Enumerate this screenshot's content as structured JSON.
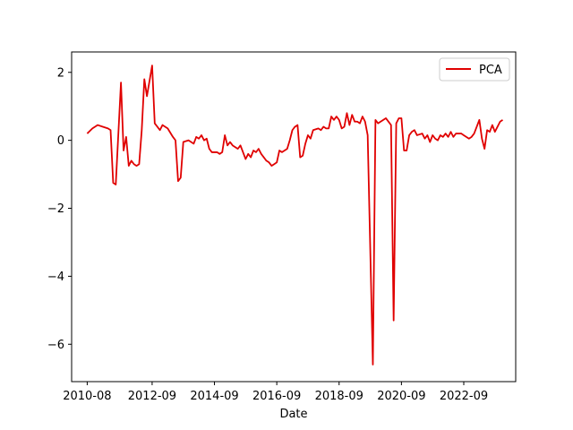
{
  "chart_data": {
    "type": "line",
    "title": "",
    "xlabel": "Date",
    "ylabel": "",
    "x_range": [
      "2010-02",
      "2024-05"
    ],
    "ylim": [
      -7.1,
      2.6
    ],
    "x_ticks": [
      {
        "date": "2010-08",
        "label": "2010-08"
      },
      {
        "date": "2012-09",
        "label": "2012-09"
      },
      {
        "date": "2014-09",
        "label": "2014-09"
      },
      {
        "date": "2016-09",
        "label": "2016-09"
      },
      {
        "date": "2018-09",
        "label": "2018-09"
      },
      {
        "date": "2020-09",
        "label": "2020-09"
      },
      {
        "date": "2022-09",
        "label": "2022-09"
      }
    ],
    "y_ticks": [
      {
        "value": 2,
        "label": "2"
      },
      {
        "value": 0,
        "label": "0"
      },
      {
        "value": -2,
        "label": "−2"
      },
      {
        "value": -4,
        "label": "−4"
      },
      {
        "value": -6,
        "label": "−6"
      }
    ],
    "grid": false,
    "legend_position": "top-right",
    "series": [
      {
        "name": "PCA",
        "color": "#e00000",
        "points": [
          [
            "2010-08",
            0.2
          ],
          [
            "2010-10",
            0.35
          ],
          [
            "2010-12",
            0.45
          ],
          [
            "2011-02",
            0.4
          ],
          [
            "2011-04",
            0.35
          ],
          [
            "2011-05",
            0.3
          ],
          [
            "2011-06",
            -1.25
          ],
          [
            "2011-07",
            -1.3
          ],
          [
            "2011-09",
            1.7
          ],
          [
            "2011-10",
            -0.3
          ],
          [
            "2011-11",
            0.1
          ],
          [
            "2011-12",
            -0.75
          ],
          [
            "2012-01",
            -0.6
          ],
          [
            "2012-02",
            -0.7
          ],
          [
            "2012-03",
            -0.75
          ],
          [
            "2012-04",
            -0.7
          ],
          [
            "2012-05",
            0.3
          ],
          [
            "2012-06",
            1.8
          ],
          [
            "2012-07",
            1.3
          ],
          [
            "2012-09",
            2.2
          ],
          [
            "2012-10",
            0.5
          ],
          [
            "2012-11",
            0.4
          ],
          [
            "2012-12",
            0.3
          ],
          [
            "2013-01",
            0.45
          ],
          [
            "2013-03",
            0.35
          ],
          [
            "2013-05",
            0.1
          ],
          [
            "2013-06",
            0.0
          ],
          [
            "2013-07",
            -1.2
          ],
          [
            "2013-08",
            -1.1
          ],
          [
            "2013-09",
            -0.05
          ],
          [
            "2013-11",
            0.0
          ],
          [
            "2014-01",
            -0.1
          ],
          [
            "2014-02",
            0.1
          ],
          [
            "2014-03",
            0.05
          ],
          [
            "2014-04",
            0.15
          ],
          [
            "2014-05",
            0.0
          ],
          [
            "2014-06",
            0.05
          ],
          [
            "2014-07",
            -0.25
          ],
          [
            "2014-08",
            -0.35
          ],
          [
            "2014-10",
            -0.35
          ],
          [
            "2014-11",
            -0.4
          ],
          [
            "2014-12",
            -0.35
          ],
          [
            "2015-01",
            0.15
          ],
          [
            "2015-02",
            -0.15
          ],
          [
            "2015-03",
            -0.05
          ],
          [
            "2015-04",
            -0.15
          ],
          [
            "2015-06",
            -0.25
          ],
          [
            "2015-07",
            -0.15
          ],
          [
            "2015-08",
            -0.35
          ],
          [
            "2015-09",
            -0.55
          ],
          [
            "2015-10",
            -0.4
          ],
          [
            "2015-11",
            -0.5
          ],
          [
            "2015-12",
            -0.3
          ],
          [
            "2016-01",
            -0.35
          ],
          [
            "2016-02",
            -0.25
          ],
          [
            "2016-03",
            -0.4
          ],
          [
            "2016-05",
            -0.6
          ],
          [
            "2016-06",
            -0.65
          ],
          [
            "2016-07",
            -0.75
          ],
          [
            "2016-08",
            -0.7
          ],
          [
            "2016-09",
            -0.65
          ],
          [
            "2016-10",
            -0.3
          ],
          [
            "2016-11",
            -0.35
          ],
          [
            "2017-01",
            -0.25
          ],
          [
            "2017-02",
            0.0
          ],
          [
            "2017-03",
            0.3
          ],
          [
            "2017-04",
            0.4
          ],
          [
            "2017-05",
            0.45
          ],
          [
            "2017-06",
            -0.5
          ],
          [
            "2017-07",
            -0.45
          ],
          [
            "2017-08",
            -0.1
          ],
          [
            "2017-09",
            0.15
          ],
          [
            "2017-10",
            0.05
          ],
          [
            "2017-11",
            0.3
          ],
          [
            "2018-01",
            0.35
          ],
          [
            "2018-02",
            0.3
          ],
          [
            "2018-03",
            0.4
          ],
          [
            "2018-04",
            0.35
          ],
          [
            "2018-05",
            0.35
          ],
          [
            "2018-06",
            0.7
          ],
          [
            "2018-07",
            0.6
          ],
          [
            "2018-08",
            0.7
          ],
          [
            "2018-09",
            0.6
          ],
          [
            "2018-10",
            0.35
          ],
          [
            "2018-11",
            0.4
          ],
          [
            "2018-12",
            0.8
          ],
          [
            "2019-01",
            0.45
          ],
          [
            "2019-02",
            0.75
          ],
          [
            "2019-03",
            0.55
          ],
          [
            "2019-04",
            0.55
          ],
          [
            "2019-05",
            0.5
          ],
          [
            "2019-06",
            0.7
          ],
          [
            "2019-07",
            0.55
          ],
          [
            "2019-08",
            0.15
          ],
          [
            "2019-10",
            -6.6
          ],
          [
            "2019-11",
            0.6
          ],
          [
            "2019-12",
            0.5
          ],
          [
            "2020-02",
            0.6
          ],
          [
            "2020-03",
            0.65
          ],
          [
            "2020-05",
            0.45
          ],
          [
            "2020-06",
            -5.3
          ],
          [
            "2020-07",
            0.5
          ],
          [
            "2020-08",
            0.65
          ],
          [
            "2020-09",
            0.65
          ],
          [
            "2020-10",
            -0.3
          ],
          [
            "2020-11",
            -0.3
          ],
          [
            "2020-12",
            0.15
          ],
          [
            "2021-01",
            0.25
          ],
          [
            "2021-02",
            0.3
          ],
          [
            "2021-03",
            0.15
          ],
          [
            "2021-05",
            0.2
          ],
          [
            "2021-06",
            0.05
          ],
          [
            "2021-07",
            0.15
          ],
          [
            "2021-08",
            -0.05
          ],
          [
            "2021-09",
            0.15
          ],
          [
            "2021-10",
            0.05
          ],
          [
            "2021-11",
            0.0
          ],
          [
            "2021-12",
            0.15
          ],
          [
            "2022-01",
            0.1
          ],
          [
            "2022-02",
            0.2
          ],
          [
            "2022-03",
            0.1
          ],
          [
            "2022-04",
            0.25
          ],
          [
            "2022-05",
            0.1
          ],
          [
            "2022-06",
            0.2
          ],
          [
            "2022-08",
            0.2
          ],
          [
            "2022-09",
            0.15
          ],
          [
            "2022-10",
            0.1
          ],
          [
            "2022-11",
            0.05
          ],
          [
            "2022-12",
            0.1
          ],
          [
            "2023-01",
            0.2
          ],
          [
            "2023-02",
            0.4
          ],
          [
            "2023-03",
            0.6
          ],
          [
            "2023-04",
            0.05
          ],
          [
            "2023-05",
            -0.25
          ],
          [
            "2023-06",
            0.3
          ],
          [
            "2023-07",
            0.25
          ],
          [
            "2023-08",
            0.45
          ],
          [
            "2023-09",
            0.25
          ],
          [
            "2023-10",
            0.4
          ],
          [
            "2023-11",
            0.55
          ],
          [
            "2023-12",
            0.6
          ]
        ]
      }
    ]
  }
}
